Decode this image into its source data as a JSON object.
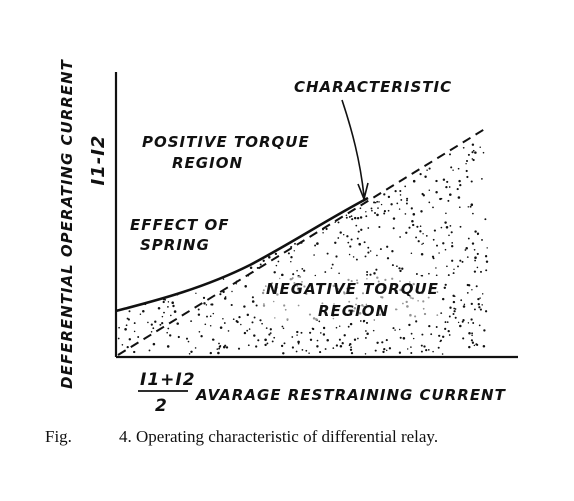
{
  "diagram": {
    "y_axis_title": "DEFERENTIAL OPERATING CURRENT",
    "y_axis_formula": "I1-I2",
    "x_axis_formula_num": "I1+I2",
    "x_axis_formula_den": "2",
    "x_axis_title": "AVARAGE RESTRAINING CURRENT",
    "labels": {
      "characteristic": "CHARACTERISTIC",
      "positive_region_line1": "POSITIVE TORQUE",
      "positive_region_line2": "REGION",
      "spring_line1": "EFFECT OF",
      "spring_line2": "SPRING",
      "negative_region_line1": "NEGATIVE TORQUE",
      "negative_region_line2": "REGION"
    }
  },
  "caption": {
    "label": "Fig.",
    "text": "4. Operating characteristic of differential relay."
  },
  "colors": {
    "ink": "#111111",
    "paper": "#ffffff"
  }
}
